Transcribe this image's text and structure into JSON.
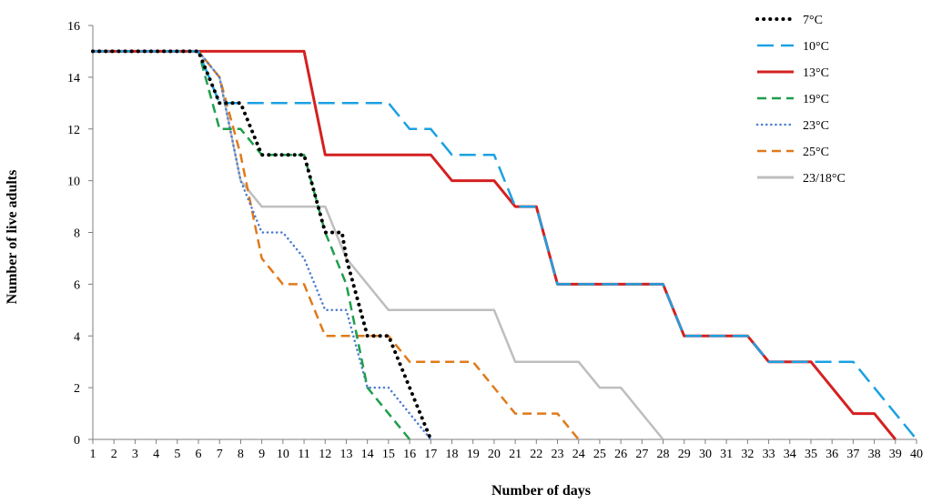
{
  "chart_data": {
    "type": "line",
    "title": "",
    "xlabel": "Number of days",
    "ylabel": "Number of live adults",
    "xlim": [
      1,
      40
    ],
    "ylim": [
      0,
      16
    ],
    "x_ticks": [
      1,
      2,
      3,
      4,
      5,
      6,
      7,
      8,
      9,
      10,
      11,
      12,
      13,
      14,
      15,
      16,
      17,
      18,
      19,
      20,
      21,
      22,
      23,
      24,
      25,
      26,
      27,
      28,
      29,
      30,
      31,
      32,
      33,
      34,
      35,
      36,
      37,
      38,
      39,
      40
    ],
    "y_ticks": [
      0,
      2,
      4,
      6,
      8,
      10,
      12,
      14,
      16
    ],
    "grid": false,
    "legend_position": "top-right",
    "series": [
      {
        "name": "7°C",
        "color": "#000000",
        "style": "dotted",
        "points": [
          [
            1,
            15
          ],
          [
            6,
            15
          ],
          [
            7,
            13
          ],
          [
            8,
            13
          ],
          [
            9,
            11
          ],
          [
            11,
            11
          ],
          [
            12,
            8
          ],
          [
            12.8,
            8
          ],
          [
            13,
            7
          ],
          [
            14,
            4
          ],
          [
            15,
            4
          ],
          [
            16,
            2
          ],
          [
            17,
            0
          ]
        ]
      },
      {
        "name": "10°C",
        "color": "#1BA1E2",
        "style": "long-dash",
        "points": [
          [
            1,
            15
          ],
          [
            6,
            15
          ],
          [
            7,
            13
          ],
          [
            15,
            13
          ],
          [
            16,
            12
          ],
          [
            17,
            12
          ],
          [
            18,
            11
          ],
          [
            20,
            11
          ],
          [
            21,
            9
          ],
          [
            22,
            9
          ],
          [
            23,
            6
          ],
          [
            28,
            6
          ],
          [
            29,
            4
          ],
          [
            32,
            4
          ],
          [
            33,
            3
          ],
          [
            37,
            3
          ],
          [
            40,
            0
          ]
        ]
      },
      {
        "name": "13°C",
        "color": "#D42020",
        "style": "solid",
        "points": [
          [
            1,
            15
          ],
          [
            11,
            15
          ],
          [
            12,
            11
          ],
          [
            17,
            11
          ],
          [
            18,
            10
          ],
          [
            20,
            10
          ],
          [
            21,
            9
          ],
          [
            22,
            9
          ],
          [
            23,
            6
          ],
          [
            28,
            6
          ],
          [
            29,
            4
          ],
          [
            32,
            4
          ],
          [
            33,
            3
          ],
          [
            35,
            3
          ],
          [
            37,
            1
          ],
          [
            38,
            1
          ],
          [
            39,
            0
          ]
        ]
      },
      {
        "name": "19°C",
        "color": "#1E9E4B",
        "style": "dashed",
        "points": [
          [
            1,
            15
          ],
          [
            6,
            15
          ],
          [
            7,
            12
          ],
          [
            8,
            12
          ],
          [
            9,
            11
          ],
          [
            11,
            11
          ],
          [
            12,
            8
          ],
          [
            13,
            6
          ],
          [
            14,
            2
          ],
          [
            16,
            0
          ]
        ]
      },
      {
        "name": "23°C",
        "color": "#4A7BD0",
        "style": "fine-dotted",
        "points": [
          [
            1,
            15
          ],
          [
            6,
            15
          ],
          [
            7,
            14
          ],
          [
            8,
            10
          ],
          [
            9,
            8
          ],
          [
            10,
            8
          ],
          [
            11,
            7
          ],
          [
            12,
            5
          ],
          [
            13,
            5
          ],
          [
            14,
            2
          ],
          [
            15,
            2
          ],
          [
            16,
            1
          ],
          [
            17,
            0
          ]
        ]
      },
      {
        "name": "25°C",
        "color": "#E07A1A",
        "style": "dashed",
        "points": [
          [
            1,
            15
          ],
          [
            6,
            15
          ],
          [
            7,
            14
          ],
          [
            8,
            11
          ],
          [
            9,
            7
          ],
          [
            10,
            6
          ],
          [
            11,
            6
          ],
          [
            12,
            4
          ],
          [
            15,
            4
          ],
          [
            16,
            3
          ],
          [
            19,
            3
          ],
          [
            21,
            1
          ],
          [
            23,
            1
          ],
          [
            24,
            0
          ]
        ]
      },
      {
        "name": "23/18°C",
        "color": "#BEBEBE",
        "style": "solid",
        "points": [
          [
            1,
            15
          ],
          [
            6,
            15
          ],
          [
            7,
            14
          ],
          [
            8,
            10
          ],
          [
            9,
            9
          ],
          [
            12,
            9
          ],
          [
            13,
            7
          ],
          [
            15,
            5
          ],
          [
            20,
            5
          ],
          [
            21,
            3
          ],
          [
            24,
            3
          ],
          [
            25,
            2
          ],
          [
            26,
            2
          ],
          [
            28,
            0
          ]
        ]
      }
    ]
  }
}
